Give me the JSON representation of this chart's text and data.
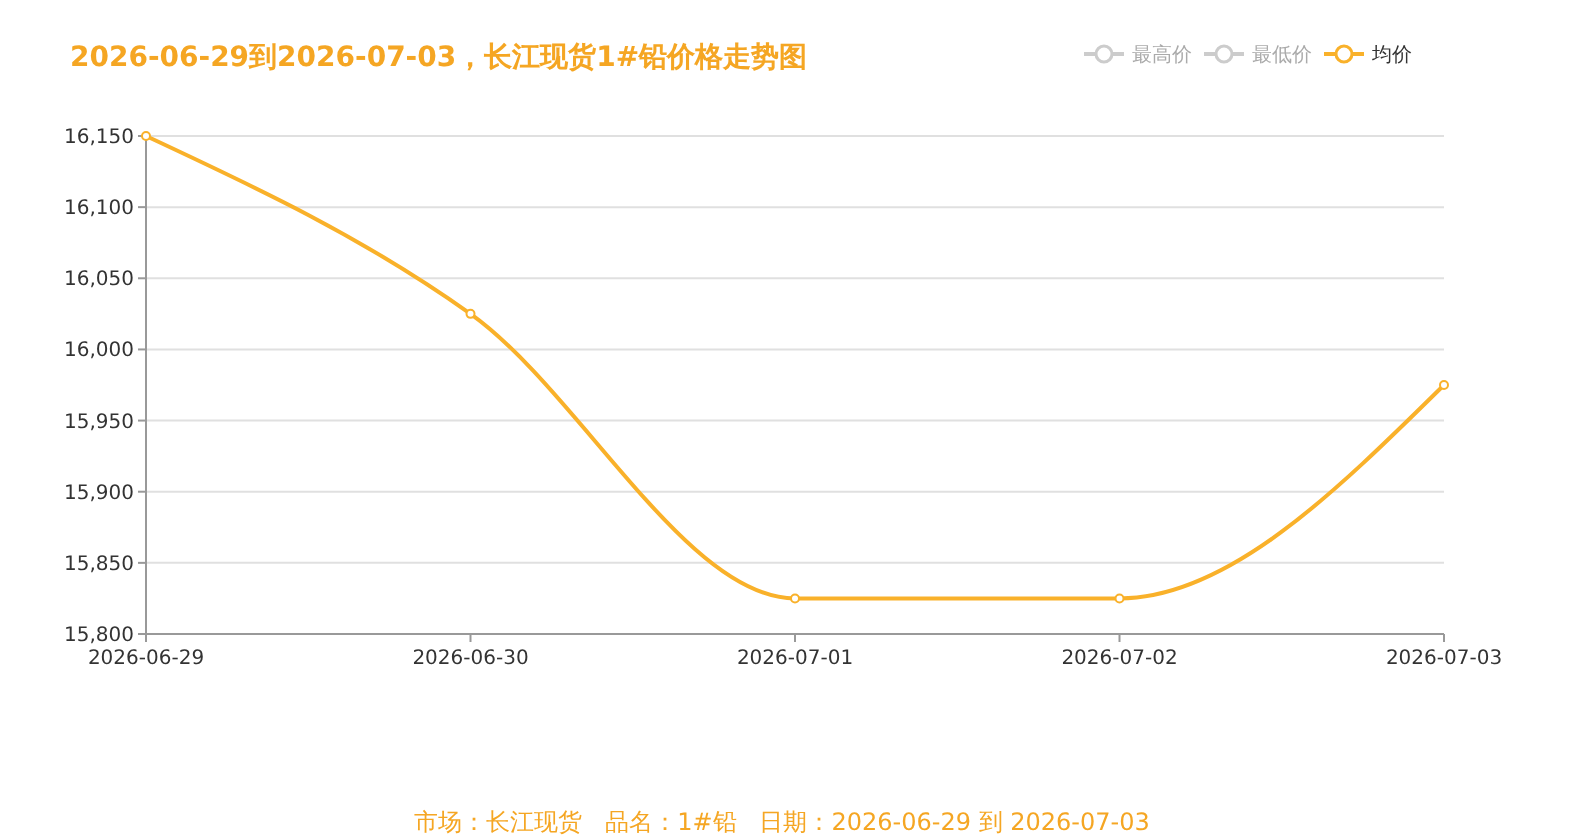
{
  "chart_data": {
    "type": "line",
    "title": "2026-06-29到2026-07-03，长江现货1#铅价格走势图",
    "categories": [
      "2026-06-29",
      "2026-06-30",
      "2026-07-01",
      "2026-07-02",
      "2026-07-03"
    ],
    "series": [
      {
        "name": "最高价",
        "color": "#cccccc",
        "values": [
          null,
          null,
          null,
          null,
          null
        ]
      },
      {
        "name": "最低价",
        "color": "#cccccc",
        "values": [
          null,
          null,
          null,
          null,
          null
        ]
      },
      {
        "name": "均价",
        "color": "#f9b12a",
        "values": [
          16150,
          16025,
          15825,
          15825,
          15975
        ]
      }
    ],
    "ylim": [
      15800,
      16150
    ],
    "yticks": [
      {
        "value": 15800,
        "label": "15,800"
      },
      {
        "value": 15850,
        "label": "15,850"
      },
      {
        "value": 15900,
        "label": "15,900"
      },
      {
        "value": 15950,
        "label": "15,950"
      },
      {
        "value": 16000,
        "label": "16,000"
      },
      {
        "value": 16050,
        "label": "16,050"
      },
      {
        "value": 16100,
        "label": "16,100"
      },
      {
        "value": 16150,
        "label": "16,150"
      }
    ],
    "grid": "y",
    "legend": "top right",
    "marker": "circle",
    "line_style": "solid",
    "annotations": [
      "市场：长江现货   品名：1#铅   日期：2026-06-29 到 2026-07-03"
    ]
  }
}
